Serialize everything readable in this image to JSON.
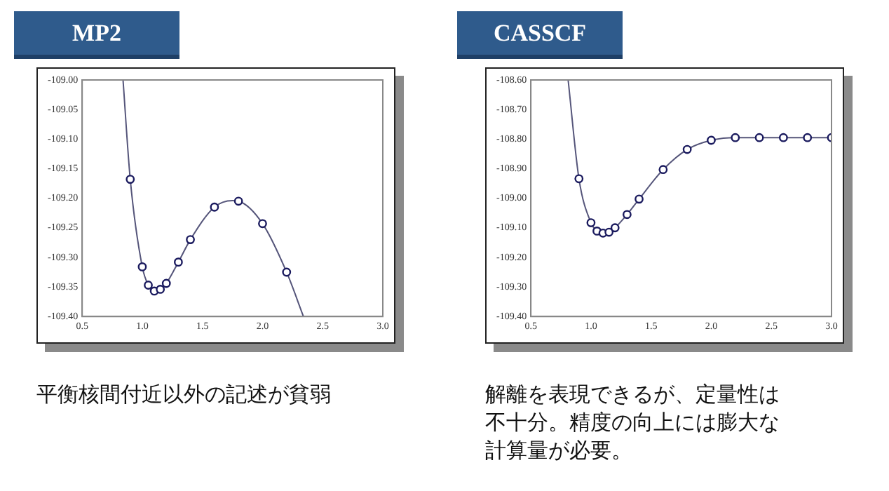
{
  "chart_data": [
    {
      "type": "scatter",
      "title": "MP2",
      "xlim": [
        0.5,
        3.0
      ],
      "ylim": [
        -109.4,
        -109.0
      ],
      "xticks": [
        {
          "value": 0.5,
          "label": "0.5"
        },
        {
          "value": 1,
          "label": "1.0"
        },
        {
          "value": 1.5,
          "label": "1.5"
        },
        {
          "value": 2,
          "label": "2.0"
        },
        {
          "value": 2.5,
          "label": "2.5"
        },
        {
          "value": 3,
          "label": "3.0"
        }
      ],
      "yticks": [
        {
          "value": -109.4,
          "label": "-109.40"
        },
        {
          "value": -109.35,
          "label": "-109.35"
        },
        {
          "value": -109.3,
          "label": "-109.30"
        },
        {
          "value": -109.25,
          "label": "-109.25"
        },
        {
          "value": -109.2,
          "label": "-109.20"
        },
        {
          "value": -109.15,
          "label": "-109.15"
        },
        {
          "value": -109.1,
          "label": "-109.10"
        },
        {
          "value": -109.05,
          "label": "-109.05"
        },
        {
          "value": -109.0,
          "label": "-109.00"
        }
      ],
      "grid": false,
      "series": [
        {
          "type": "line",
          "marker": "none",
          "color": "#55557a",
          "x": [
            0.84,
            0.9,
            1.0,
            1.05,
            1.1,
            1.15,
            1.2,
            1.3,
            1.4,
            1.6,
            1.75,
            1.8,
            2.0,
            2.2,
            2.34
          ],
          "values": [
            -109.0,
            -109.168,
            -109.316,
            -109.347,
            -109.357,
            -109.354,
            -109.344,
            -109.308,
            -109.27,
            -109.215,
            -109.204,
            -109.205,
            -109.243,
            -109.325,
            -109.4
          ]
        },
        {
          "type": "scatter",
          "marker": "circle",
          "color": "#1a1a5e",
          "x": [
            0.9,
            1.0,
            1.05,
            1.1,
            1.15,
            1.2,
            1.3,
            1.4,
            1.6,
            1.8,
            2.0,
            2.2
          ],
          "values": [
            -109.168,
            -109.316,
            -109.347,
            -109.357,
            -109.354,
            -109.344,
            -109.308,
            -109.27,
            -109.215,
            -109.205,
            -109.243,
            -109.325
          ]
        }
      ],
      "annotations": [
        "平衡核間付近以外の記述が貧弱"
      ]
    },
    {
      "type": "scatter",
      "title": "CASSCF",
      "xlim": [
        0.5,
        3.0
      ],
      "ylim": [
        -109.4,
        -108.6
      ],
      "xticks": [
        {
          "value": 0.5,
          "label": "0.5"
        },
        {
          "value": 1,
          "label": "1.0"
        },
        {
          "value": 1.5,
          "label": "1.5"
        },
        {
          "value": 2,
          "label": "2.0"
        },
        {
          "value": 2.5,
          "label": "2.5"
        },
        {
          "value": 3,
          "label": "3.0"
        }
      ],
      "yticks": [
        {
          "value": -109.4,
          "label": "-109.40"
        },
        {
          "value": -109.3,
          "label": "-109.30"
        },
        {
          "value": -109.2,
          "label": "-109.20"
        },
        {
          "value": -109.1,
          "label": "-109.10"
        },
        {
          "value": -109.0,
          "label": "-109.00"
        },
        {
          "value": -108.9,
          "label": "-108.90"
        },
        {
          "value": -108.8,
          "label": "-108.80"
        },
        {
          "value": -108.7,
          "label": "-108.70"
        },
        {
          "value": -108.6,
          "label": "-108.60"
        }
      ],
      "grid": false,
      "series": [
        {
          "type": "line",
          "marker": "none",
          "color": "#55557a",
          "x": [
            0.81,
            0.9,
            1.0,
            1.05,
            1.1,
            1.15,
            1.2,
            1.3,
            1.4,
            1.6,
            1.8,
            2.0,
            2.2,
            2.4,
            2.6,
            2.8,
            3.0
          ],
          "values": [
            -108.6,
            -108.934,
            -109.083,
            -109.111,
            -109.118,
            -109.115,
            -109.1,
            -109.055,
            -109.003,
            -108.903,
            -108.835,
            -108.804,
            -108.795,
            -108.795,
            -108.795,
            -108.795,
            -108.795
          ]
        },
        {
          "type": "scatter",
          "marker": "circle",
          "color": "#1a1a5e",
          "x": [
            0.9,
            1.0,
            1.05,
            1.1,
            1.15,
            1.2,
            1.3,
            1.4,
            1.6,
            1.8,
            2.0,
            2.2,
            2.4,
            2.6,
            2.8,
            3.0
          ],
          "values": [
            -108.934,
            -109.083,
            -109.111,
            -109.118,
            -109.115,
            -109.1,
            -109.055,
            -109.003,
            -108.903,
            -108.835,
            -108.804,
            -108.795,
            -108.795,
            -108.795,
            -108.795,
            -108.795
          ]
        }
      ],
      "annotations": [
        "解離を表現できるが、定量性は不十分。精度の向上には膨大な計算量が必要。"
      ]
    }
  ]
}
